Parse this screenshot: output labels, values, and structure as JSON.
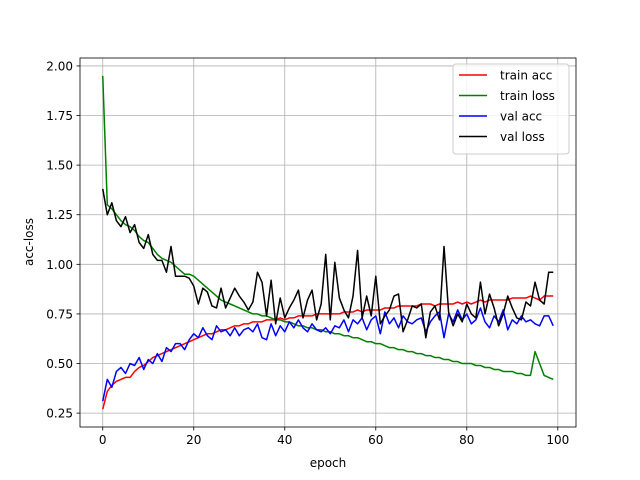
{
  "chart_data": {
    "type": "line",
    "title": "",
    "xlabel": "epoch",
    "ylabel": "acc-loss",
    "xlim": [
      -5,
      104
    ],
    "ylim": [
      0.18,
      2.04
    ],
    "xticks": [
      0,
      20,
      40,
      60,
      80,
      100
    ],
    "yticks": [
      0.25,
      0.5,
      0.75,
      1.0,
      1.25,
      1.5,
      1.75,
      2.0
    ],
    "xtick_labels": [
      "0",
      "20",
      "40",
      "60",
      "80",
      "100"
    ],
    "ytick_labels": [
      "0.25",
      "0.50",
      "0.75",
      "1.00",
      "1.25",
      "1.50",
      "1.75",
      "2.00"
    ],
    "grid": true,
    "legend_position": "top-right",
    "x": [
      0,
      1,
      2,
      3,
      4,
      5,
      6,
      7,
      8,
      9,
      10,
      11,
      12,
      13,
      14,
      15,
      16,
      17,
      18,
      19,
      20,
      21,
      22,
      23,
      24,
      25,
      26,
      27,
      28,
      29,
      30,
      31,
      32,
      33,
      34,
      35,
      36,
      37,
      38,
      39,
      40,
      41,
      42,
      43,
      44,
      45,
      46,
      47,
      48,
      49,
      50,
      51,
      52,
      53,
      54,
      55,
      56,
      57,
      58,
      59,
      60,
      61,
      62,
      63,
      64,
      65,
      66,
      67,
      68,
      69,
      70,
      71,
      72,
      73,
      74,
      75,
      76,
      77,
      78,
      79,
      80,
      81,
      82,
      83,
      84,
      85,
      86,
      87,
      88,
      89,
      90,
      91,
      92,
      93,
      94,
      95,
      96,
      97,
      98,
      99
    ],
    "series": [
      {
        "name": "train acc",
        "color": "#ff0000",
        "values": [
          0.27,
          0.36,
          0.39,
          0.41,
          0.42,
          0.43,
          0.43,
          0.46,
          0.48,
          0.49,
          0.51,
          0.53,
          0.54,
          0.55,
          0.56,
          0.57,
          0.58,
          0.59,
          0.6,
          0.61,
          0.62,
          0.63,
          0.64,
          0.65,
          0.65,
          0.66,
          0.67,
          0.67,
          0.68,
          0.69,
          0.69,
          0.7,
          0.7,
          0.71,
          0.71,
          0.71,
          0.72,
          0.72,
          0.72,
          0.73,
          0.72,
          0.73,
          0.73,
          0.74,
          0.74,
          0.74,
          0.74,
          0.75,
          0.75,
          0.75,
          0.75,
          0.75,
          0.75,
          0.76,
          0.76,
          0.76,
          0.77,
          0.76,
          0.77,
          0.77,
          0.77,
          0.77,
          0.78,
          0.78,
          0.78,
          0.79,
          0.79,
          0.79,
          0.79,
          0.79,
          0.8,
          0.8,
          0.8,
          0.79,
          0.8,
          0.8,
          0.8,
          0.8,
          0.81,
          0.8,
          0.81,
          0.8,
          0.81,
          0.82,
          0.81,
          0.82,
          0.82,
          0.82,
          0.82,
          0.82,
          0.83,
          0.83,
          0.83,
          0.83,
          0.84,
          0.83,
          0.82,
          0.84,
          0.84,
          0.84
        ]
      },
      {
        "name": "train loss",
        "color": "#008000",
        "values": [
          1.95,
          1.3,
          1.28,
          1.25,
          1.22,
          1.2,
          1.19,
          1.17,
          1.14,
          1.12,
          1.11,
          1.08,
          1.05,
          1.03,
          1.02,
          1.01,
          0.99,
          0.97,
          0.95,
          0.95,
          0.94,
          0.92,
          0.9,
          0.88,
          0.86,
          0.84,
          0.82,
          0.81,
          0.8,
          0.79,
          0.78,
          0.77,
          0.76,
          0.75,
          0.75,
          0.74,
          0.74,
          0.73,
          0.72,
          0.72,
          0.71,
          0.71,
          0.7,
          0.69,
          0.69,
          0.68,
          0.68,
          0.67,
          0.67,
          0.66,
          0.66,
          0.65,
          0.65,
          0.64,
          0.64,
          0.63,
          0.63,
          0.62,
          0.61,
          0.61,
          0.6,
          0.6,
          0.59,
          0.58,
          0.58,
          0.57,
          0.57,
          0.56,
          0.56,
          0.55,
          0.55,
          0.54,
          0.54,
          0.53,
          0.53,
          0.52,
          0.52,
          0.51,
          0.51,
          0.5,
          0.5,
          0.5,
          0.49,
          0.49,
          0.48,
          0.48,
          0.47,
          0.47,
          0.46,
          0.46,
          0.46,
          0.45,
          0.45,
          0.44,
          0.44,
          0.56,
          0.5,
          0.44,
          0.43,
          0.42
        ]
      },
      {
        "name": "val acc",
        "color": "#0000ff",
        "values": [
          0.31,
          0.42,
          0.38,
          0.46,
          0.48,
          0.45,
          0.5,
          0.49,
          0.53,
          0.47,
          0.52,
          0.5,
          0.55,
          0.51,
          0.58,
          0.56,
          0.6,
          0.6,
          0.57,
          0.62,
          0.65,
          0.63,
          0.68,
          0.64,
          0.62,
          0.69,
          0.66,
          0.67,
          0.64,
          0.68,
          0.64,
          0.67,
          0.68,
          0.66,
          0.7,
          0.63,
          0.62,
          0.7,
          0.64,
          0.69,
          0.66,
          0.71,
          0.68,
          0.72,
          0.68,
          0.66,
          0.7,
          0.67,
          0.66,
          0.68,
          0.65,
          0.69,
          0.68,
          0.72,
          0.66,
          0.72,
          0.7,
          0.73,
          0.67,
          0.72,
          0.74,
          0.65,
          0.76,
          0.7,
          0.73,
          0.68,
          0.74,
          0.71,
          0.7,
          0.72,
          0.73,
          0.66,
          0.71,
          0.74,
          0.76,
          0.63,
          0.75,
          0.71,
          0.77,
          0.72,
          0.75,
          0.7,
          0.72,
          0.78,
          0.71,
          0.68,
          0.74,
          0.71,
          0.77,
          0.67,
          0.72,
          0.7,
          0.74,
          0.71,
          0.72,
          0.7,
          0.69,
          0.74,
          0.74,
          0.69
        ]
      },
      {
        "name": "val loss",
        "color": "#000000",
        "values": [
          1.38,
          1.25,
          1.31,
          1.22,
          1.19,
          1.24,
          1.16,
          1.2,
          1.11,
          1.08,
          1.15,
          1.05,
          1.02,
          1.02,
          0.96,
          1.09,
          0.94,
          0.94,
          0.94,
          0.93,
          0.89,
          0.8,
          0.88,
          0.86,
          0.79,
          0.78,
          0.88,
          0.78,
          0.83,
          0.88,
          0.84,
          0.81,
          0.77,
          0.81,
          0.96,
          0.91,
          0.74,
          0.92,
          0.7,
          0.83,
          0.73,
          0.78,
          0.82,
          0.87,
          0.73,
          0.82,
          0.87,
          0.72,
          0.8,
          1.05,
          0.72,
          1.01,
          0.83,
          0.77,
          0.73,
          0.84,
          1.07,
          0.73,
          0.84,
          0.74,
          0.94,
          0.7,
          0.74,
          0.77,
          0.84,
          0.85,
          0.66,
          0.72,
          0.79,
          0.78,
          0.8,
          0.63,
          0.76,
          0.79,
          0.72,
          1.09,
          0.76,
          0.69,
          0.75,
          0.71,
          0.8,
          0.75,
          0.73,
          0.91,
          0.75,
          0.85,
          0.78,
          0.69,
          0.75,
          0.84,
          0.78,
          0.73,
          0.72,
          0.81,
          0.79,
          0.91,
          0.82,
          0.8,
          0.96,
          0.96
        ]
      }
    ]
  }
}
